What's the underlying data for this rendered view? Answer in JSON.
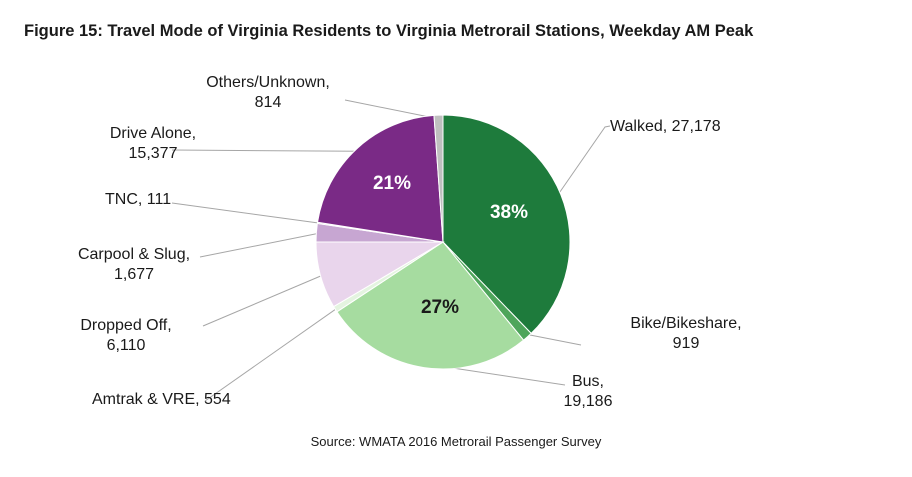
{
  "title": "Figure 15: Travel Mode of Virginia Residents to Virginia Metrorail Stations, Weekday AM Peak",
  "source": "Source: WMATA 2016 Metrorail Passenger Survey",
  "chart_data": {
    "type": "pie",
    "title": "Figure 15: Travel Mode of Virginia Residents to Virginia Metrorail Stations, Weekday AM Peak",
    "slices": [
      {
        "label": "Walked",
        "value": 27178,
        "value_label": "27,178",
        "color": "#1e7b3c",
        "pct_label": "38%",
        "pct_color": "#ffffff",
        "label_lines": [
          "Walked, 27,178"
        ]
      },
      {
        "label": "Bike/Bikeshare",
        "value": 919,
        "value_label": "919",
        "color": "#4ea55b",
        "pct_label": "",
        "label_lines": [
          "Bike/Bikeshare,",
          "919"
        ]
      },
      {
        "label": "Bus",
        "value": 19186,
        "value_label": "19,186",
        "color": "#a6dca0",
        "pct_label": "27%",
        "pct_color": "#1a1a1a",
        "label_lines": [
          "Bus,",
          "19,186"
        ]
      },
      {
        "label": "Amtrak & VRE",
        "value": 554,
        "value_label": "554",
        "color": "#e4f4e0",
        "pct_label": "",
        "label_lines": [
          "Amtrak & VRE, 554"
        ]
      },
      {
        "label": "Dropped Off",
        "value": 6110,
        "value_label": "6,110",
        "color": "#e9d5ec",
        "pct_label": "",
        "label_lines": [
          "Dropped Off,",
          "6,110"
        ]
      },
      {
        "label": "Carpool & Slug",
        "value": 1677,
        "value_label": "1,677",
        "color": "#c7a6d2",
        "pct_label": "",
        "label_lines": [
          "Carpool & Slug,",
          "1,677"
        ]
      },
      {
        "label": "TNC",
        "value": 111,
        "value_label": "111",
        "color": "#9c6cae",
        "pct_label": "",
        "label_lines": [
          "TNC, 111"
        ]
      },
      {
        "label": "Drive Alone",
        "value": 15377,
        "value_label": "15,377",
        "color": "#7a2a86",
        "pct_label": "21%",
        "pct_color": "#ffffff",
        "label_lines": [
          "Drive Alone,",
          "15,377"
        ]
      },
      {
        "label": "Others/Unknown",
        "value": 814,
        "value_label": "814",
        "color": "#bfbfbf",
        "pct_label": "",
        "label_lines": [
          "Others/Unknown,",
          "814"
        ]
      }
    ],
    "legend": "none (callout labels)"
  }
}
